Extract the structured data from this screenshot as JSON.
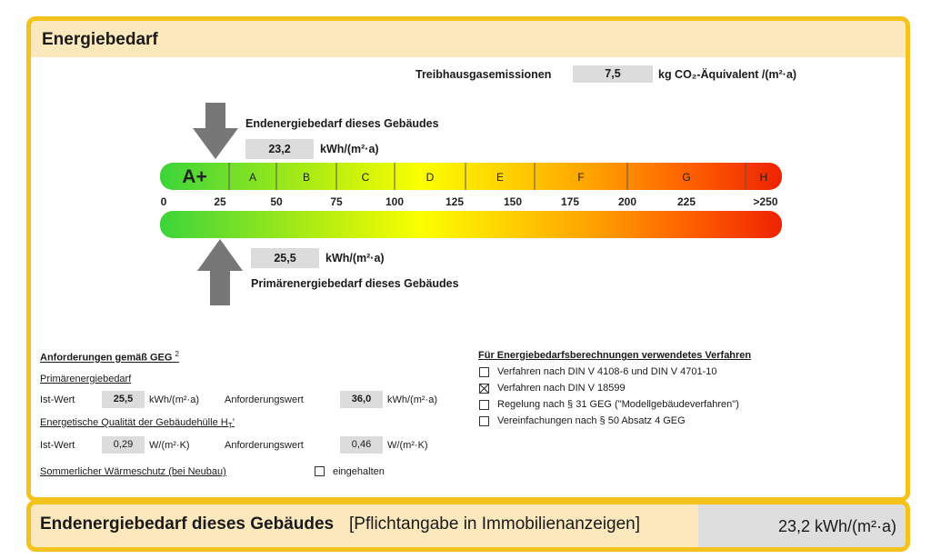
{
  "header": {
    "title": "Energiebedarf"
  },
  "emissions": {
    "label": "Treibhausgasemissionen",
    "value": "7,5",
    "unit": "kg CO₂-Äquivalent /(m²·a)"
  },
  "end_energy": {
    "label": "Endenergiebedarf dieses Gebäudes",
    "value": "23,2",
    "unit": "kWh/(m²·a)"
  },
  "primary_energy": {
    "label": "Primärenergiebedarf dieses Gebäudes",
    "value": "25,5",
    "unit": "kWh/(m²·a)"
  },
  "scale": {
    "classes": [
      "A+",
      "A",
      "B",
      "C",
      "D",
      "E",
      "F",
      "G",
      "H"
    ],
    "ticks": [
      "0",
      "25",
      "50",
      "75",
      "100",
      "125",
      "150",
      "175",
      "200",
      "225",
      ">250"
    ]
  },
  "requirements": {
    "title": "Anforderungen gemäß GEG",
    "footnote": "2",
    "primary_title": "Primärenergiebedarf",
    "ist_label": "Ist-Wert",
    "ist_value": "25,5",
    "ist_unit": "kWh/(m²·a)",
    "anf_label": "Anforderungswert",
    "anf_value": "36,0",
    "anf_unit": "kWh/(m²·a)",
    "huelle_title": "Energetische Qualität der Gebäudehülle H",
    "huelle_sub": "T",
    "huelle_suffix": "’",
    "ist2_label": "Ist-Wert",
    "ist2_value": "0,29",
    "ist2_unit": "W/(m²·K)",
    "anf2_label": "Anforderungswert",
    "anf2_value": "0,46",
    "anf2_unit": "W/(m²·K)",
    "summer_title": "Sommerlicher Wärmeschutz (bei Neubau)",
    "summer_check_label": "eingehalten"
  },
  "methods": {
    "title": "Für Energiebedarfsberechnungen verwendetes Verfahren",
    "items": [
      {
        "label": "Verfahren nach DIN V 4108-6 und DIN V 4701-10",
        "checked": false
      },
      {
        "label": "Verfahren nach DIN V 18599",
        "checked": true
      },
      {
        "label": "Regelung nach § 31 GEG (\"Modellgebäudeverfahren\")",
        "checked": false
      },
      {
        "label": "Vereinfachungen nach § 50 Absatz 4 GEG",
        "checked": false
      }
    ]
  },
  "footer": {
    "title": "Endenergiebedarf dieses Gebäudes",
    "note": "[Pflichtangabe in Immobilienanzeigen]",
    "value": "23,2 kWh/(m²·a)"
  }
}
